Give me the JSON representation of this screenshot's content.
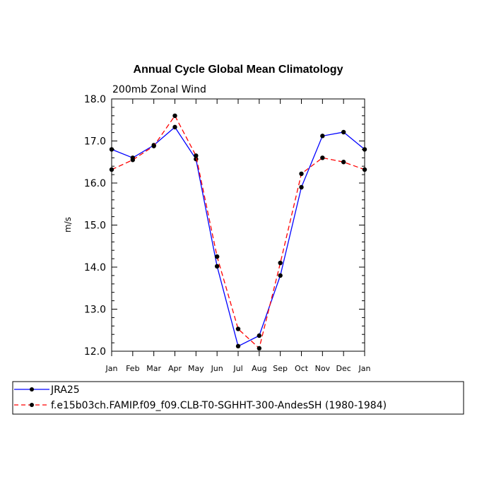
{
  "chart_data": {
    "type": "line",
    "title": "Annual Cycle Global Mean Climatology",
    "subtitle": "200mb Zonal Wind",
    "xlabel": "",
    "ylabel": "m/s",
    "categories": [
      "Jan",
      "Feb",
      "Mar",
      "Apr",
      "May",
      "Jun",
      "Jul",
      "Aug",
      "Sep",
      "Oct",
      "Nov",
      "Dec",
      "Jan"
    ],
    "ylim": [
      12.0,
      18.0
    ],
    "yticks": [
      "12.0",
      "13.0",
      "14.0",
      "15.0",
      "16.0",
      "17.0",
      "18.0"
    ],
    "grid": false,
    "legend_position": "bottom",
    "series": [
      {
        "name": "JRA25",
        "color": "#0000ff",
        "dash": "solid",
        "values": [
          16.8,
          16.6,
          16.9,
          17.33,
          16.57,
          14.02,
          12.12,
          12.37,
          13.8,
          15.9,
          17.12,
          17.21,
          16.8
        ]
      },
      {
        "name": "f.e15b03ch.FAMIP.f09_f09.CLB-T0-SGHHT-300-AndesSH (1980-1984)",
        "color": "#ff0000",
        "dash": "dashed",
        "values": [
          16.32,
          16.55,
          16.88,
          17.6,
          16.65,
          14.25,
          12.53,
          12.07,
          14.1,
          16.22,
          16.6,
          16.5,
          16.32
        ]
      }
    ]
  }
}
